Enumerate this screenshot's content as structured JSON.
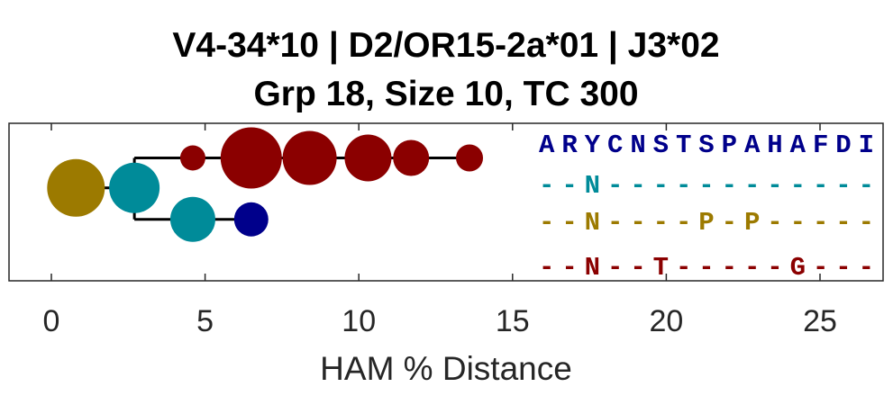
{
  "chart_data": {
    "type": "scatter",
    "title": "V4-34*10 | D2/OR15-2a*01 | J3*02",
    "subtitle": "Grp 18, Size 10, TC 300",
    "xlabel": "HAM % Distance",
    "xlim": [
      0,
      27
    ],
    "ylim": [
      0,
      5
    ],
    "xticks": [
      "0",
      "5",
      "10",
      "15",
      "20",
      "25"
    ],
    "grid": false,
    "nodes": [
      {
        "x": 0.0,
        "y": 2.95,
        "size": 1,
        "color": "#000000"
      },
      {
        "x": 0.8,
        "y": 2.95,
        "size": 32,
        "color": "#9C7A00"
      },
      {
        "x": 2.7,
        "y": 2.95,
        "size": 28,
        "color": "#008B99"
      },
      {
        "x": 4.6,
        "y": 3.9,
        "size": 14,
        "color": "#8B0000"
      },
      {
        "x": 6.5,
        "y": 3.9,
        "size": 34,
        "color": "#8B0000"
      },
      {
        "x": 8.4,
        "y": 3.9,
        "size": 30,
        "color": "#8B0000"
      },
      {
        "x": 10.3,
        "y": 3.9,
        "size": 26,
        "color": "#8B0000"
      },
      {
        "x": 11.7,
        "y": 3.9,
        "size": 20,
        "color": "#8B0000"
      },
      {
        "x": 13.6,
        "y": 3.9,
        "size": 15,
        "color": "#8B0000"
      },
      {
        "x": 4.6,
        "y": 1.95,
        "size": 25,
        "color": "#008B99"
      },
      {
        "x": 6.5,
        "y": 1.95,
        "size": 19,
        "color": "#00008B"
      }
    ],
    "edges": [
      {
        "x1": 0.0,
        "y1": 2.95,
        "x2": 2.7,
        "y2": 2.95
      },
      {
        "x1": 2.7,
        "y1": 3.9,
        "x2": 2.7,
        "y2": 1.95
      },
      {
        "x1": 2.7,
        "y1": 3.9,
        "x2": 13.6,
        "y2": 3.9
      },
      {
        "x1": 2.7,
        "y1": 1.95,
        "x2": 6.5,
        "y2": 1.95
      }
    ],
    "sequences": [
      {
        "text": "ARYCNSTSPAHAFDI",
        "color": "#00008B"
      },
      {
        "text": "--N------------",
        "color": "#008B99"
      },
      {
        "text": "--N----P-P-----",
        "color": "#9C7A00"
      },
      {
        "text": "--N--T-----G---",
        "color": "#8B0000"
      }
    ]
  }
}
